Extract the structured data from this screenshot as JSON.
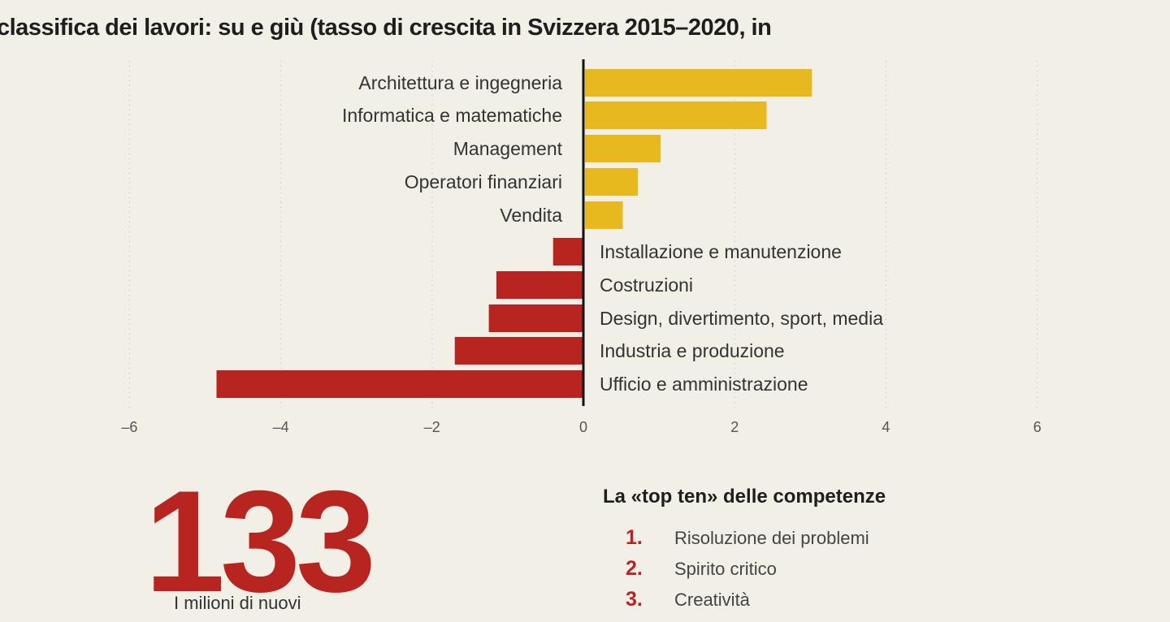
{
  "colors": {
    "positive": "#e8b91e",
    "negative": "#b8241f",
    "background": "#f1efe6"
  },
  "chart_data": {
    "type": "bar",
    "orientation": "horizontal",
    "title": "classifica dei lavori: su e giù (tasso di crescita in Svizzera 2015–2020, in",
    "categories": [
      "Architettura e ingegneria",
      "Informatica e matematiche",
      "Management",
      "Operatori finanziari",
      "Vendita",
      "Installazione e manutenzione",
      "Costruzioni",
      "Design, divertimento, sport, media",
      "Industria e produzione",
      "Ufficio e amministrazione"
    ],
    "values": [
      3.0,
      2.4,
      1.0,
      0.7,
      0.5,
      -0.4,
      -1.15,
      -1.25,
      -1.7,
      -4.85
    ],
    "xlim": [
      -6,
      6
    ],
    "xticks": [
      -6,
      -4,
      -2,
      0,
      2,
      4,
      6
    ],
    "xtick_labels": [
      "–6",
      "–4",
      "–2",
      "0",
      "2",
      "4",
      "6"
    ],
    "grid": true
  },
  "highlight": {
    "number": "133",
    "caption": "I milioni di nuovi"
  },
  "skills": {
    "heading": "La «top ten» delle competenze",
    "items": [
      {
        "n": "1.",
        "label": "Risoluzione dei problemi"
      },
      {
        "n": "2.",
        "label": "Spirito critico"
      },
      {
        "n": "3.",
        "label": "Creatività"
      }
    ]
  }
}
